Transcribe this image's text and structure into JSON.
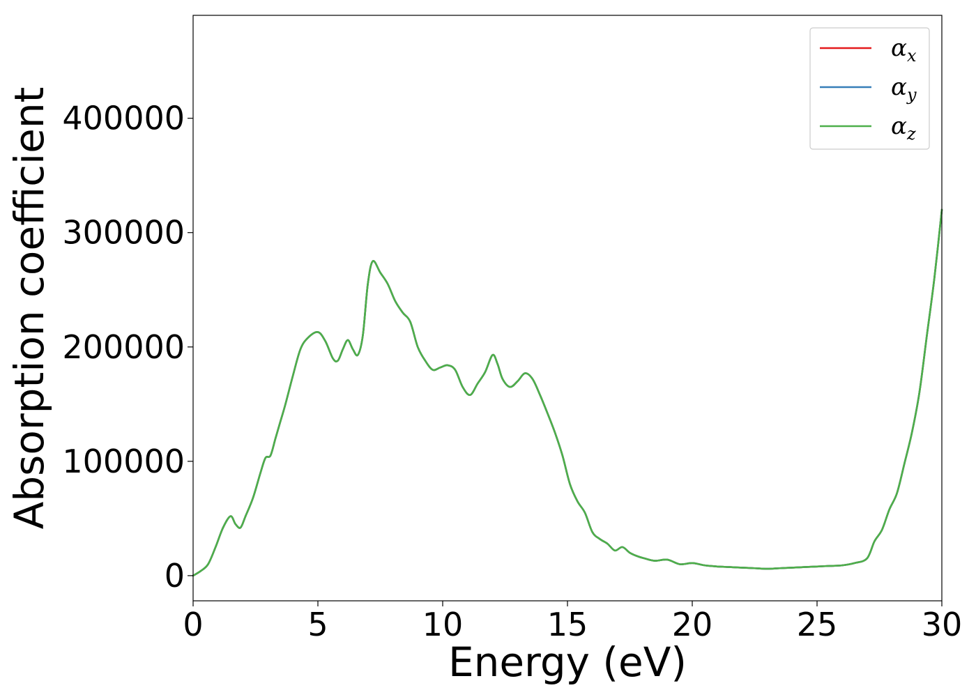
{
  "chart_data": {
    "type": "line",
    "xlabel": "Energy (eV)",
    "ylabel": "Absorption coefficient",
    "xlim": [
      0,
      30
    ],
    "ylim": [
      -22000,
      490000
    ],
    "xticks": [
      0,
      5,
      10,
      15,
      20,
      25,
      30
    ],
    "xtick_labels": [
      "0",
      "5",
      "10",
      "15",
      "20",
      "25",
      "30"
    ],
    "yticks": [
      0,
      100000,
      200000,
      300000,
      400000
    ],
    "ytick_labels": [
      "0",
      "100000",
      "200000",
      "300000",
      "400000"
    ],
    "grid": false,
    "legend_position": "top-right",
    "x": [
      0,
      0.3,
      0.6,
      0.9,
      1.2,
      1.5,
      1.7,
      1.9,
      2.1,
      2.4,
      2.7,
      2.9,
      3.1,
      3.3,
      3.5,
      3.7,
      4.0,
      4.3,
      4.6,
      5.0,
      5.3,
      5.6,
      5.8,
      6.0,
      6.2,
      6.4,
      6.6,
      6.8,
      7.0,
      7.2,
      7.5,
      7.8,
      8.1,
      8.4,
      8.7,
      9.0,
      9.3,
      9.6,
      9.9,
      10.2,
      10.5,
      10.8,
      11.1,
      11.4,
      11.7,
      12.0,
      12.2,
      12.4,
      12.7,
      13.0,
      13.3,
      13.6,
      13.9,
      14.2,
      14.5,
      14.8,
      15.1,
      15.4,
      15.7,
      16.0,
      16.3,
      16.6,
      16.9,
      17.2,
      17.5,
      17.8,
      18.1,
      18.5,
      19.0,
      19.5,
      20.0,
      20.5,
      21.0,
      21.5,
      22.0,
      22.5,
      23.0,
      23.5,
      24.0,
      24.5,
      25.0,
      25.5,
      26.0,
      26.5,
      27.0,
      27.3,
      27.6,
      27.9,
      28.2,
      28.5,
      28.8,
      29.1,
      29.4,
      29.7,
      30.0
    ],
    "series": [
      {
        "name": "α",
        "subscript": "x",
        "color": "#e41a1c",
        "values": [
          0,
          4000,
          10000,
          25000,
          42000,
          52000,
          45000,
          42000,
          52000,
          68000,
          90000,
          103000,
          105000,
          120000,
          135000,
          150000,
          175000,
          198000,
          208000,
          213000,
          205000,
          190000,
          188000,
          198000,
          206000,
          198000,
          193000,
          210000,
          255000,
          275000,
          265000,
          255000,
          240000,
          230000,
          222000,
          200000,
          188000,
          180000,
          182000,
          184000,
          180000,
          165000,
          158000,
          168000,
          178000,
          193000,
          185000,
          172000,
          165000,
          170000,
          177000,
          172000,
          158000,
          142000,
          125000,
          105000,
          80000,
          65000,
          55000,
          38000,
          32000,
          28000,
          22000,
          25000,
          20000,
          17000,
          15000,
          13000,
          14000,
          10000,
          11000,
          9000,
          8000,
          7500,
          7000,
          6500,
          6000,
          6500,
          7000,
          7500,
          8000,
          8500,
          9000,
          11000,
          15000,
          30000,
          40000,
          58000,
          72000,
          98000,
          125000,
          160000,
          210000,
          260000,
          320000
        ]
      },
      {
        "name": "α",
        "subscript": "y",
        "color": "#377eb8",
        "values": [
          0,
          4000,
          10000,
          25000,
          42000,
          52000,
          45000,
          42000,
          52000,
          68000,
          90000,
          103000,
          105000,
          120000,
          135000,
          150000,
          175000,
          198000,
          208000,
          213000,
          205000,
          190000,
          188000,
          198000,
          206000,
          198000,
          193000,
          210000,
          255000,
          275000,
          265000,
          255000,
          240000,
          230000,
          222000,
          200000,
          188000,
          180000,
          182000,
          184000,
          180000,
          165000,
          158000,
          168000,
          178000,
          193000,
          185000,
          172000,
          165000,
          170000,
          177000,
          172000,
          158000,
          142000,
          125000,
          105000,
          80000,
          65000,
          55000,
          38000,
          32000,
          28000,
          22000,
          25000,
          20000,
          17000,
          15000,
          13000,
          14000,
          10000,
          11000,
          9000,
          8000,
          7500,
          7000,
          6500,
          6000,
          6500,
          7000,
          7500,
          8000,
          8500,
          9000,
          11000,
          15000,
          30000,
          40000,
          58000,
          72000,
          98000,
          125000,
          160000,
          210000,
          260000,
          320000
        ]
      },
      {
        "name": "α",
        "subscript": "z",
        "color": "#4daf4a",
        "values": [
          0,
          4000,
          10000,
          25000,
          42000,
          52000,
          45000,
          42000,
          52000,
          68000,
          90000,
          103000,
          105000,
          120000,
          135000,
          150000,
          175000,
          198000,
          208000,
          213000,
          205000,
          190000,
          188000,
          198000,
          206000,
          198000,
          193000,
          210000,
          255000,
          275000,
          265000,
          255000,
          240000,
          230000,
          222000,
          200000,
          188000,
          180000,
          182000,
          184000,
          180000,
          165000,
          158000,
          168000,
          178000,
          193000,
          185000,
          172000,
          165000,
          170000,
          177000,
          172000,
          158000,
          142000,
          125000,
          105000,
          80000,
          65000,
          55000,
          38000,
          32000,
          28000,
          22000,
          25000,
          20000,
          17000,
          15000,
          13000,
          14000,
          10000,
          11000,
          9000,
          8000,
          7500,
          7000,
          6500,
          6000,
          6500,
          7000,
          7500,
          8000,
          8500,
          9000,
          11000,
          15000,
          30000,
          40000,
          58000,
          72000,
          98000,
          125000,
          160000,
          210000,
          260000,
          320000
        ]
      }
    ]
  }
}
